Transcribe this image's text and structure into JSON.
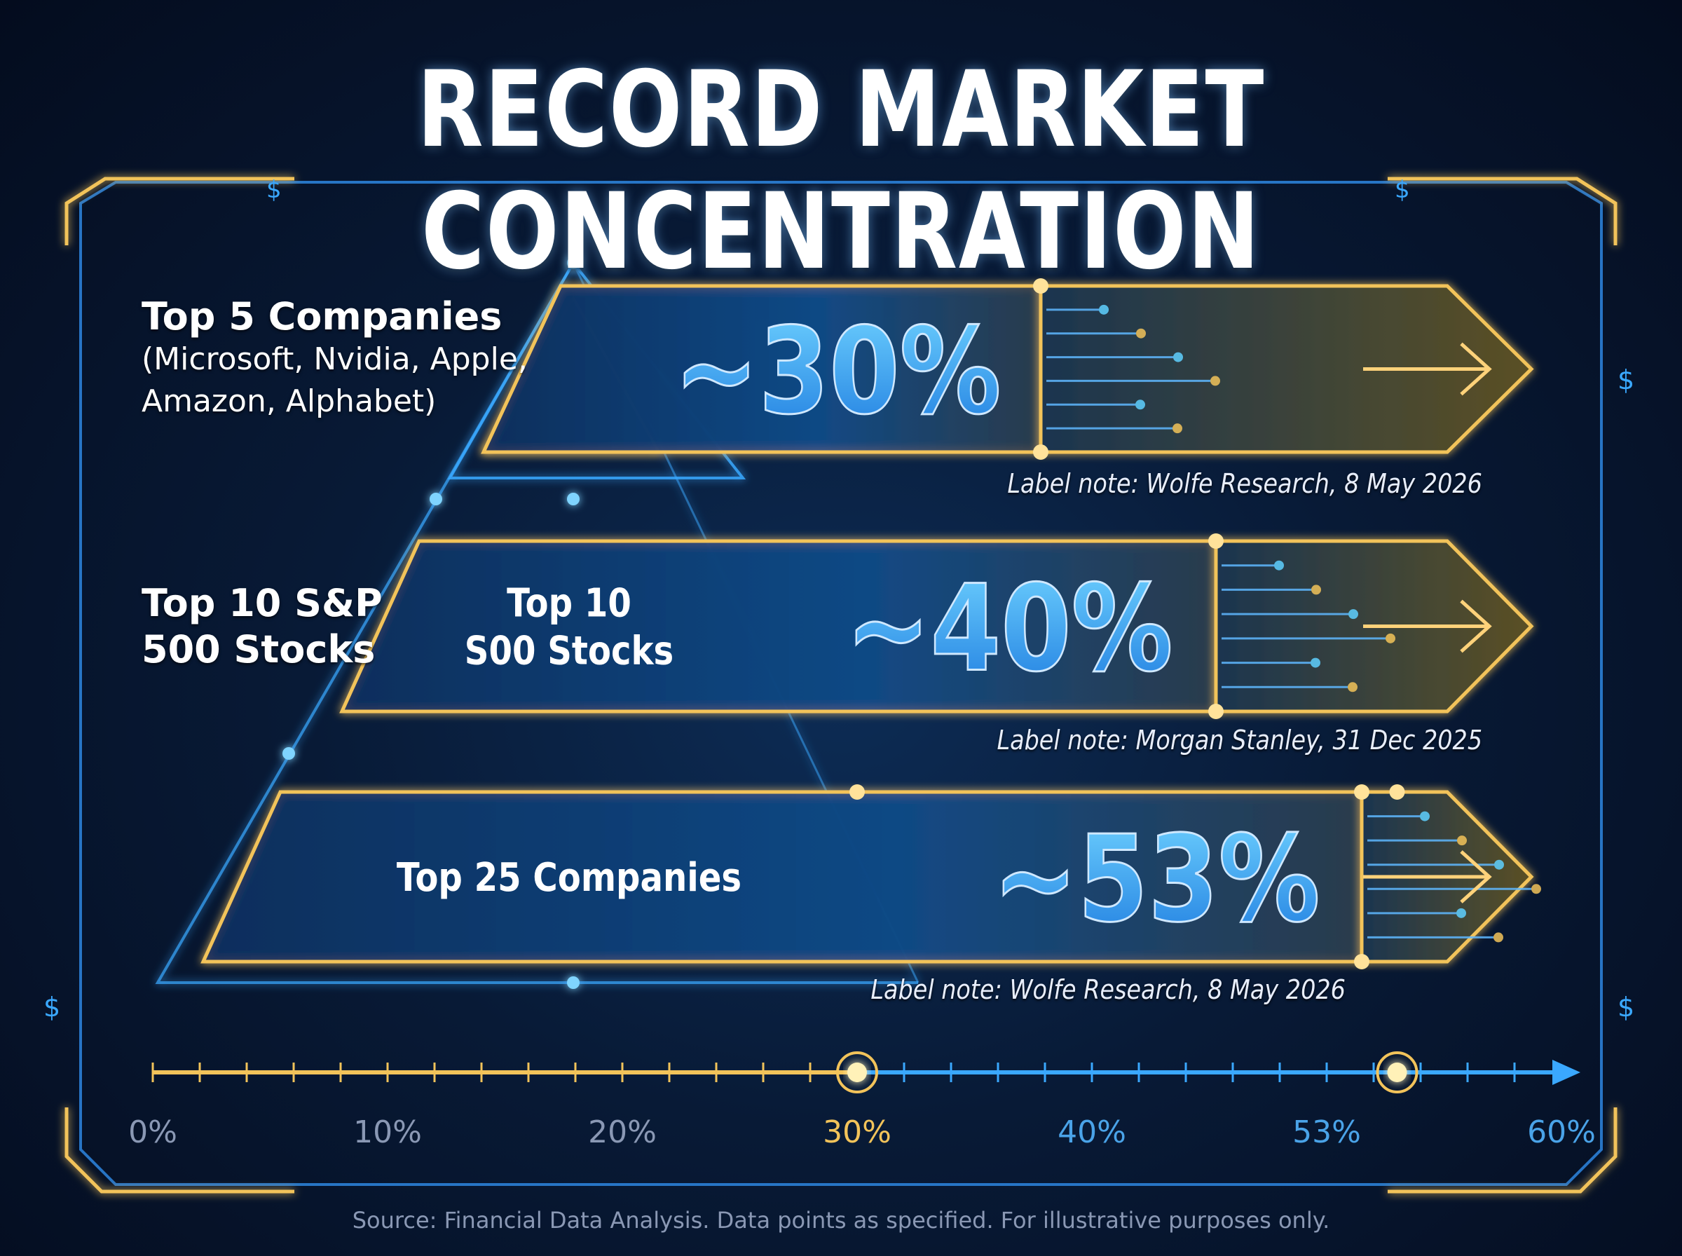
{
  "title": "RECORD MARKET CONCENTRATION",
  "source": "Source: Financial Data Analysis. Data points as specified. For illustrative purposes only.",
  "colors": {
    "gold": "#f2c35a",
    "blue": "#3aa8ff",
    "cyan": "#5fd0ff",
    "background": "#081a36"
  },
  "chart_data": {
    "type": "bar",
    "orientation": "horizontal",
    "title": "RECORD MARKET CONCENTRATION",
    "categories": [
      "Top 5 Companies",
      "Top 10 S&P 500 Stocks",
      "Top 25 Companies"
    ],
    "values": [
      30,
      40,
      53
    ],
    "value_labels": [
      "~30%",
      "~40%",
      "~53%"
    ],
    "bars": [
      {
        "label_main": "Top 5 Companies",
        "label_sub": [
          "(Microsoft, Nvidia, Apple,",
          "Amazon, Alphabet)"
        ],
        "inner_label": [],
        "value": 30,
        "value_label": "~30%",
        "note": "Label note: Wolfe Research, 8 May 2026"
      },
      {
        "label_main_lines": [
          "Top 10 S&P",
          "500 Stocks"
        ],
        "inner_label": [
          "Top 10",
          "S00 Stocks"
        ],
        "value": 40,
        "value_label": "~40%",
        "note": "Label note: Morgan Stanley, 31 Dec 2025"
      },
      {
        "inner_label": [
          "Top 25 Companies"
        ],
        "value": 53,
        "value_label": "~53%",
        "note": "Label note: Wolfe Research, 8 May 2026"
      }
    ],
    "axis": {
      "ticks": [
        "0%",
        "10%",
        "20%",
        "30%",
        "40%",
        "53%",
        "60%"
      ],
      "highlighted_ticks": [
        "30%"
      ],
      "markers": [
        30,
        53
      ]
    },
    "grid": false,
    "legend": "none"
  }
}
